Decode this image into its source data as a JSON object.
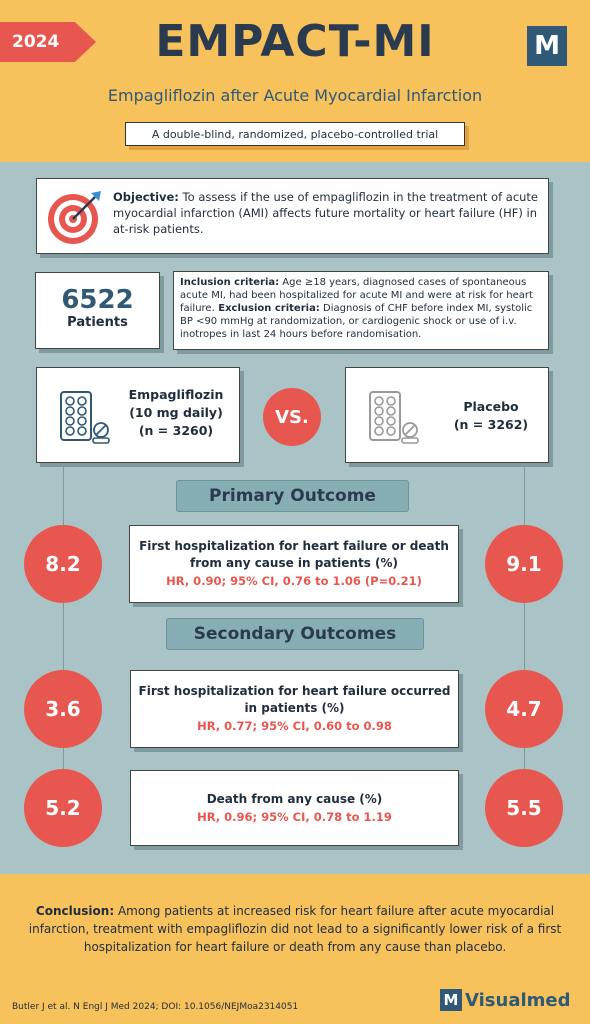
{
  "header": {
    "year": "2024",
    "title": "EMPACT-MI",
    "subtitle": "Empagliflozin after Acute Myocardial Infarction",
    "design": "A double-blind, randomized, placebo-controlled trial",
    "logo_letter": "M"
  },
  "objective": {
    "label": "Objective:",
    "text": " To assess if the use of empagliflozin in the treatment of acute myocardial infarction (AMI) affects future mortality or heart failure (HF) in at-risk patients.",
    "icon": "target-icon"
  },
  "patients": {
    "count": "6522",
    "label": "Patients"
  },
  "criteria": {
    "inclusion_label": "Inclusion criteria:",
    "inclusion_text": " Age ≥18 years, diagnosed cases of spontaneous acute MI, had been hospitalized for acute MI and were at risk for heart failure.",
    "exclusion_label": " Exclusion criteria:",
    "exclusion_text": " Diagnosis of CHF before index MI, systolic BP <90 mmHg at randomization, or cardiogenic shock or use of i.v. inotropes in last 24 hours before randomisation."
  },
  "arms": {
    "empagliflozin": {
      "name": "Empagliflozin",
      "dose": "(10 mg daily)",
      "n": "(n = 3260)",
      "icon": "pill-pack-icon"
    },
    "vs": "VS.",
    "placebo": {
      "name": "Placebo",
      "n": "(n = 3262)",
      "icon": "pill-pack-icon"
    }
  },
  "primary": {
    "heading": "Primary Outcome",
    "title": "First hospitalization for heart failure or death from any cause in patients (%)",
    "stat": "HR, 0.90; 95% CI, 0.76 to 1.06 (P=0.21)",
    "empagliflozin": "8.2",
    "placebo": "9.1"
  },
  "secondary": {
    "heading": "Secondary Outcomes",
    "outcome1": {
      "title": "First hospitalization for heart failure occurred in patients (%)",
      "stat": "HR, 0.77; 95% CI, 0.60 to 0.98",
      "empagliflozin": "3.6",
      "placebo": "4.7"
    },
    "outcome2": {
      "title": "Death from any cause  (%)",
      "stat": "HR, 0.96; 95% CI, 0.78 to 1.19",
      "empagliflozin": "5.2",
      "placebo": "5.5"
    }
  },
  "conclusion": {
    "label": "Conclusion:",
    "text": " Among patients at increased risk for heart failure after acute myocardial infarction, treatment with empagliflozin did not lead to a significantly lower risk of a first hospitalization for heart failure or death from any cause than placebo."
  },
  "footer": {
    "citation": "Butler J et al. N Engl J Med 2024; DOI: 10.1056/NEJMoa2314051",
    "brand_letter": "M",
    "brand_name": "Visualmed"
  },
  "colors": {
    "accent_red": "#e8574f",
    "header_yellow": "#f7c15c",
    "background_teal": "#a9c3c6",
    "brand_blue": "#2f5974"
  }
}
